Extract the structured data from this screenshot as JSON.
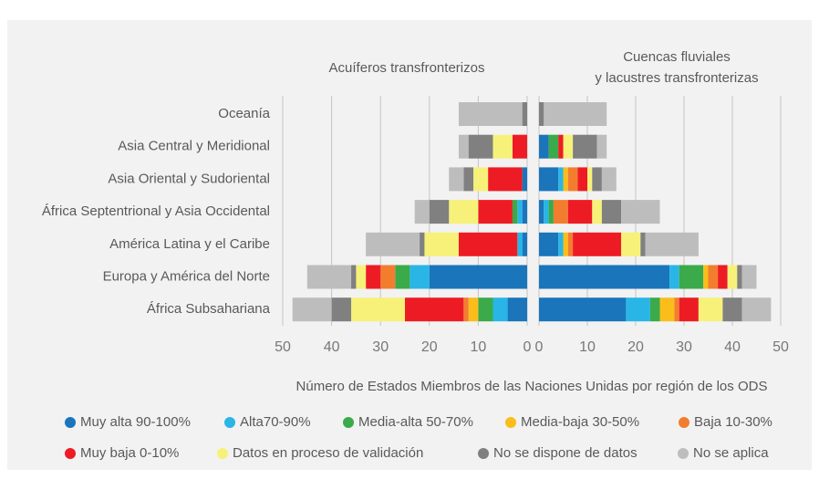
{
  "chart_data": [
    {
      "type": "bar",
      "title": "Acuíferos transfronterizos",
      "x_label": "Número de Estados Miembros de las Naciones Unidas por región de los ODS",
      "categories": [
        "Oceanía",
        "Asia Central y Meridional",
        "Asia Oriental y Sudoriental",
        "África Septentrional y Asia Occidental",
        "América Latina y el Caribe",
        "Europa y América del Norte",
        "África Subsahariana"
      ],
      "xlim": [
        50,
        0
      ],
      "xticks": [
        50,
        40,
        30,
        20,
        10,
        0
      ],
      "grid": true,
      "series": [
        {
          "name": "Muy alta 90-100%",
          "color": "#1a75bb",
          "values": [
            0,
            0,
            1,
            1,
            1,
            20,
            4
          ]
        },
        {
          "name": "Alta70-90%",
          "color": "#29b6e6",
          "values": [
            0,
            0,
            0,
            1,
            1,
            4,
            3
          ]
        },
        {
          "name": "Media-alta 50-70%",
          "color": "#3aaa4a",
          "values": [
            0,
            0,
            0,
            1,
            0,
            3,
            3
          ]
        },
        {
          "name": "Media-baja 30-50%",
          "color": "#fbbd1b",
          "values": [
            0,
            0,
            0,
            0,
            0,
            0,
            2
          ]
        },
        {
          "name": "Baja 10-30%",
          "color": "#f37d2f",
          "values": [
            0,
            0,
            0,
            0,
            0,
            3,
            1
          ]
        },
        {
          "name": "Muy baja 0-10%",
          "color": "#ed1c24",
          "values": [
            0,
            3,
            7,
            7,
            12,
            3,
            12
          ]
        },
        {
          "name": "Datos en proceso de validación",
          "color": "#f7f17a",
          "values": [
            0,
            4,
            3,
            6,
            7,
            2,
            11
          ]
        },
        {
          "name": "No se dispone de datos",
          "color": "#808080",
          "values": [
            1,
            5,
            2,
            4,
            1,
            1,
            4
          ]
        },
        {
          "name": "No se aplica",
          "color": "#bdbdbd",
          "values": [
            13,
            2,
            3,
            3,
            11,
            9,
            8
          ]
        }
      ]
    },
    {
      "type": "bar",
      "title": [
        "Cuencas fluviales",
        "y lacustres transfronterizas"
      ],
      "xlim": [
        0,
        50
      ],
      "xticks": [
        0,
        10,
        20,
        30,
        40,
        50
      ],
      "grid": true,
      "series": [
        {
          "values": [
            0,
            2,
            4,
            1,
            4,
            27,
            18
          ]
        },
        {
          "values": [
            0,
            0,
            1,
            1,
            1,
            2,
            5
          ]
        },
        {
          "values": [
            0,
            2,
            0,
            1,
            0,
            5,
            2
          ]
        },
        {
          "values": [
            0,
            0,
            1,
            0,
            1,
            1,
            3
          ]
        },
        {
          "values": [
            0,
            0,
            2,
            3,
            1,
            2,
            1
          ]
        },
        {
          "values": [
            0,
            1,
            2,
            5,
            10,
            2,
            4
          ]
        },
        {
          "values": [
            0,
            2,
            1,
            2,
            4,
            2,
            5
          ]
        },
        {
          "values": [
            1,
            5,
            2,
            4,
            1,
            1,
            4
          ]
        },
        {
          "values": [
            13,
            2,
            3,
            8,
            11,
            3,
            6
          ]
        }
      ]
    }
  ]
}
